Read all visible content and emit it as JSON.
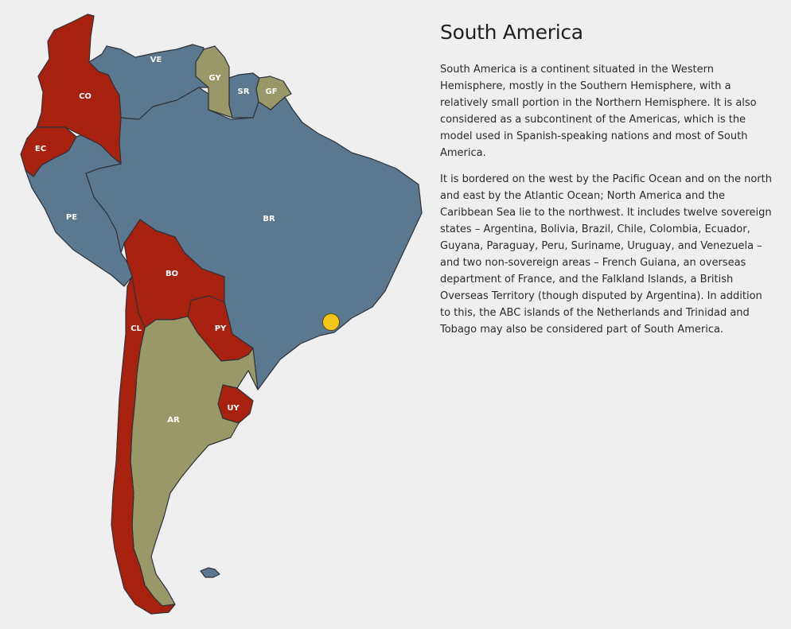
{
  "colors": {
    "red": "#a8210e",
    "blue": "#5a7890",
    "olive": "#989868",
    "marker": "#f5c518",
    "background": "#efefef"
  },
  "map": {
    "countries": [
      {
        "code": "CO",
        "fill": "red"
      },
      {
        "code": "VE",
        "fill": "blue"
      },
      {
        "code": "GY",
        "fill": "olive"
      },
      {
        "code": "SR",
        "fill": "blue"
      },
      {
        "code": "GF",
        "fill": "olive"
      },
      {
        "code": "EC",
        "fill": "red"
      },
      {
        "code": "PE",
        "fill": "blue"
      },
      {
        "code": "BR",
        "fill": "blue"
      },
      {
        "code": "BO",
        "fill": "red"
      },
      {
        "code": "PY",
        "fill": "red"
      },
      {
        "code": "CL",
        "fill": "red"
      },
      {
        "code": "AR",
        "fill": "olive"
      },
      {
        "code": "UY",
        "fill": "red"
      },
      {
        "code": "FK",
        "fill": "blue"
      }
    ],
    "marker_icon": "location-dot"
  },
  "info": {
    "title": "South America",
    "paragraphs": [
      "South America is a continent situated in the Western Hemisphere, mostly in the Southern Hemisphere, with a relatively small portion in the Northern Hemisphere. It is also considered as a subcontinent of the Americas, which is the model used in Spanish-speaking nations and most of South America.",
      "It is bordered on the west by the Pacific Ocean and on the north and east by the Atlantic Ocean; North America and the Caribbean Sea lie to the northwest. It includes twelve sovereign states – Argentina, Bolivia, Brazil, Chile, Colombia, Ecuador, Guyana, Paraguay, Peru, Suriname, Uruguay, and Venezuela – and two non-sovereign areas – French Guiana, an overseas department of France, and the Falkland Islands, a British Overseas Territory (though disputed by Argentina). In addition to this, the ABC islands of the Netherlands and Trinidad and Tobago may also be considered part of South America."
    ]
  }
}
